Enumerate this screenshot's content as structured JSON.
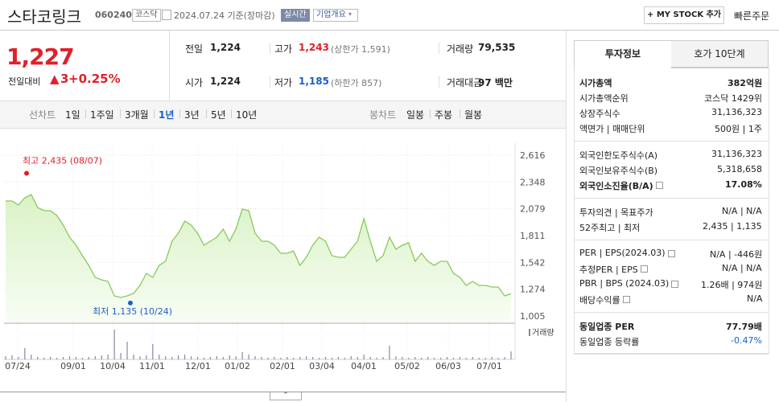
{
  "header": {
    "title": "스타코링크",
    "code": "060240",
    "market": "코스닥",
    "date": "2024.07.24 기준(장마감)",
    "realtime": "실시간",
    "company_overview": "기업개요",
    "my_stock": "+ MY STOCK 추가",
    "quick_order": "빠른주문"
  },
  "price": {
    "current": "1,227",
    "change_label": "전일대비",
    "change": "3",
    "change_rate": "+0.25%"
  },
  "summary": {
    "rows": [
      [
        {
          "label": "전일",
          "value": "1,224"
        },
        {
          "label": "고가",
          "value": "1,243",
          "note": "(상한가 1,591)"
        },
        {
          "label": "거래량",
          "value": "79,535"
        }
      ],
      [
        {
          "label": "시가",
          "value": "1,224"
        },
        {
          "label": "저가",
          "value": "1,185",
          "note": "(하한가 857)"
        },
        {
          "label": "거래대금",
          "value": "97 백만"
        }
      ]
    ]
  },
  "period_tabs": {
    "line_label": "선차트",
    "line": [
      "1일",
      "1주일",
      "3개월",
      "1년",
      "3년",
      "5년",
      "10년"
    ],
    "candle_label": "봉차트",
    "candle": [
      "일봉",
      "주봉",
      "월봉"
    ]
  },
  "chart": {
    "type": "area",
    "color": "#86c95a",
    "ylim": [
      1005,
      2616
    ],
    "yticks": [
      {
        "value": 1005,
        "label": "1,005"
      },
      {
        "value": 1274,
        "label": "1,274"
      },
      {
        "value": 1542,
        "label": "1,542"
      },
      {
        "value": 1811,
        "label": "1,811"
      },
      {
        "value": 2079,
        "label": "2,079"
      },
      {
        "value": 2348,
        "label": "2,348"
      },
      {
        "value": 2616,
        "label": "2,616"
      }
    ],
    "x_labels": [
      "07/24",
      "09/01",
      "10/04",
      "11/01",
      "12/01",
      "01/02",
      "02/01",
      "03/04",
      "04/01",
      "05/02",
      "06/03",
      "07/01"
    ],
    "values": [
      2157,
      2157,
      2117,
      2189,
      2221,
      2092,
      2060,
      2060,
      2012,
      1915,
      1794,
      1714,
      1609,
      1512,
      1392,
      1367,
      1351,
      1206,
      1190,
      1206,
      1231,
      1311,
      1432,
      1392,
      1512,
      1553,
      1754,
      1835,
      1955,
      1915,
      1835,
      1714,
      1754,
      1794,
      1875,
      1754,
      1875,
      2076,
      2060,
      1835,
      1754,
      1754,
      1714,
      1633,
      1633,
      1657,
      1512,
      1593,
      1714,
      1794,
      1754,
      1609,
      1593,
      1593,
      1674,
      1754,
      1980,
      1754,
      1553,
      1609,
      1794,
      1674,
      1714,
      1738,
      1553,
      1633,
      1553,
      1512,
      1553,
      1553,
      1432,
      1392,
      1311,
      1351,
      1311,
      1311,
      1295,
      1295,
      1206,
      1227
    ],
    "volume_label": "거래량",
    "volume": [
      4,
      5,
      3,
      14,
      6,
      3,
      2,
      3,
      2,
      3,
      4,
      3,
      2,
      3,
      4,
      5,
      6,
      37,
      8,
      22,
      6,
      4,
      5,
      19,
      6,
      4,
      3,
      5,
      6,
      4,
      3,
      2,
      3,
      4,
      3,
      5,
      4,
      9,
      6,
      4,
      3,
      2,
      3,
      2,
      3,
      2,
      3,
      4,
      3,
      2,
      3,
      2,
      3,
      2,
      4,
      3,
      6,
      3,
      2,
      3,
      17,
      4,
      3,
      2,
      3,
      2,
      3,
      2,
      2,
      3,
      2,
      3,
      2,
      3,
      2,
      2,
      3,
      2,
      3,
      10
    ],
    "annotations": [
      {
        "text": "최고 2,435 (08/07)",
        "value": 2435
      },
      {
        "text": "최저 1,135 (10/24)",
        "value": 1135
      }
    ]
  },
  "investment_info": {
    "tabs": [
      "투자정보",
      "호가 10단계"
    ],
    "groups": [
      [
        {
          "label": "시가총액",
          "value": "382억원"
        },
        {
          "label": "시가총액순위",
          "value": "코스닥 1429위"
        },
        {
          "label": "상장주식수",
          "value": "31,136,323"
        },
        {
          "label": "액면가 | 매매단위",
          "value": "500원 | 1주"
        }
      ],
      [
        {
          "label": "외국인한도주식수(A)",
          "value": "31,136,323"
        },
        {
          "label": "외국인보유주식수(B)",
          "value": "5,318,658"
        },
        {
          "label": "외국인소진율(B/A)",
          "value": "17.08%"
        }
      ],
      [
        {
          "label": "투자의견 | 목표주가",
          "value": "N/A | N/A"
        },
        {
          "label": "52주최고 | 최저",
          "value": "2,435 | 1,135"
        }
      ],
      [
        {
          "label": "PER | EPS(2024.03)",
          "value": "N/A | -446원"
        },
        {
          "label": "추정PER | EPS",
          "value": "N/A | N/A"
        },
        {
          "label": "PBR | BPS (2024.03)",
          "value": "1.26배 | 974원"
        },
        {
          "label": "배당수익률",
          "value": "N/A"
        }
      ],
      [
        {
          "label": "동일업종 PER",
          "value": "77.79배"
        },
        {
          "label": "동일업종 등락률",
          "value": "-0.47%"
        }
      ]
    ]
  }
}
